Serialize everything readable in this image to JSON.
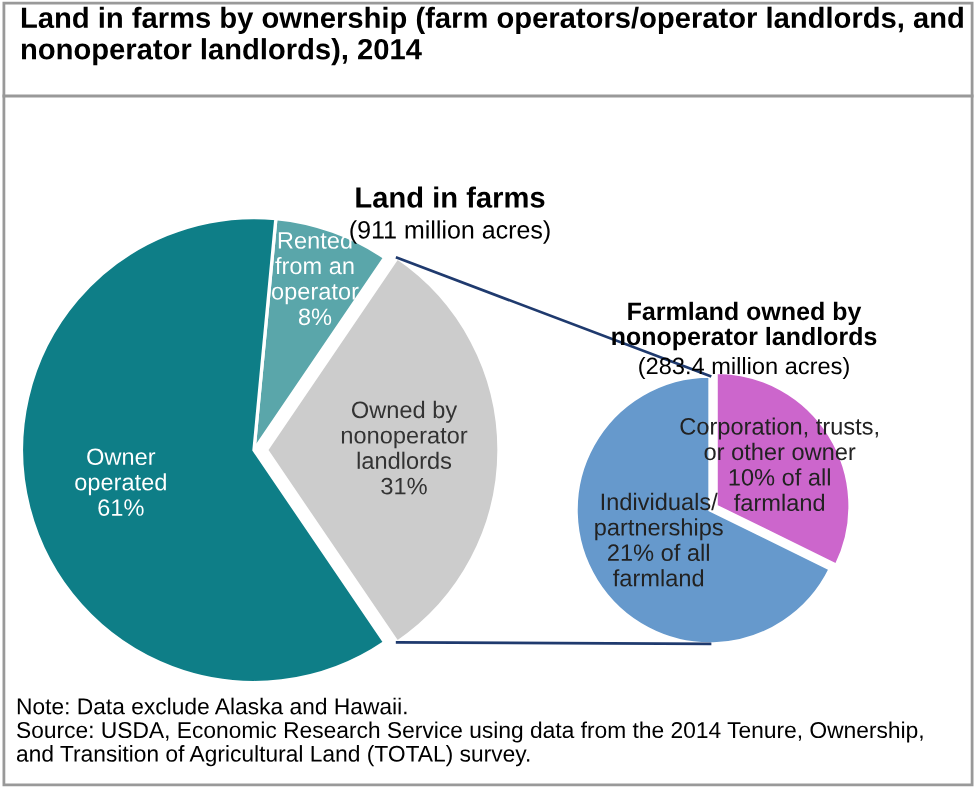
{
  "chart_data": [
    {
      "type": "pie",
      "title": "Land in farms",
      "subtitle": "(911 million acres)",
      "categories": [
        "Rented\nfrom an\noperator",
        "Owner\noperated",
        "Owned by\nnonoperator\nlandlords"
      ],
      "values": [
        8,
        61,
        31
      ],
      "value_labels": [
        "8%",
        "61%",
        "31%"
      ],
      "colors": [
        "#5aa6aa",
        "#0e7e87",
        "#cccccc"
      ],
      "annotations": [
        "Land in farms by ownership (farm operators/operator landlords, and nonoperator landlords), 2014",
        "Note: Data exclude Alaska and Hawaii.\nSource: USDA, Economic Research Service using data from the 2014 Tenure, Ownership,\nand Transition of Agricultural Land (TOTAL) survey."
      ]
    },
    {
      "type": "pie",
      "title": "Farmland owned by\nnonoperator landlords",
      "subtitle": "(283.4 million acres)",
      "categories": [
        "Corporation, trusts,\nor other owner",
        "Individuals/\npartnerships"
      ],
      "values": [
        10,
        21
      ],
      "value_labels": [
        "10% of all\nfarmland",
        "21% of all\nfarmland"
      ],
      "colors": [
        "#cc66cc",
        "#6699cc"
      ]
    }
  ]
}
